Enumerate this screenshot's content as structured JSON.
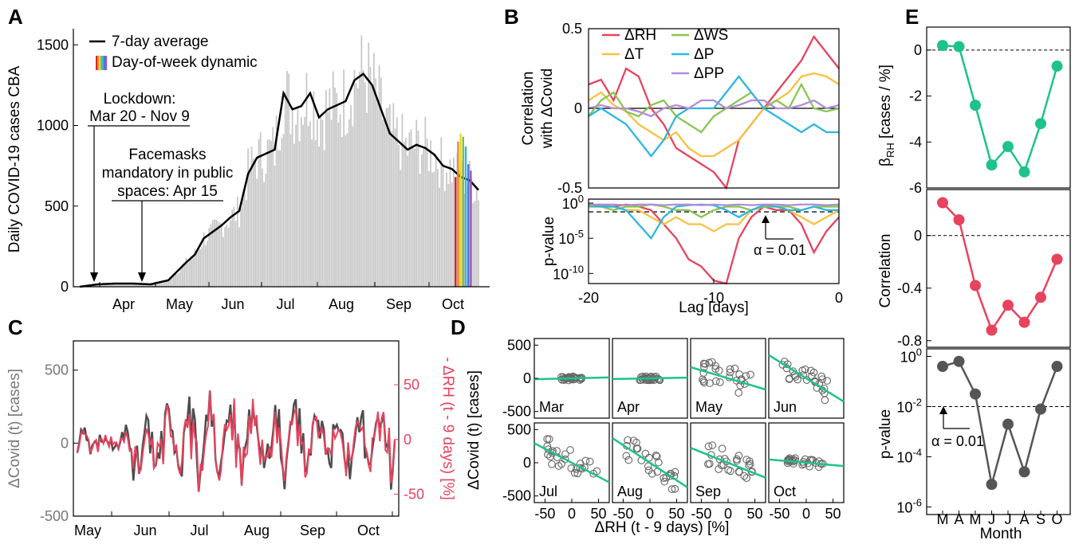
{
  "panel_labels": [
    "A",
    "B",
    "C",
    "D",
    "E"
  ],
  "chart_data": [
    {
      "type": "bar",
      "panel": "A",
      "ylabel": "Daily COVID-19 cases CBA",
      "ylim": [
        0,
        1600
      ],
      "yticks": [
        "0",
        "500",
        "1000",
        "1500"
      ],
      "xticks": [
        "Apr",
        "May",
        "Jun",
        "Jul",
        "Aug",
        "Sep",
        "Oct"
      ],
      "legend": [
        "7-day average",
        "Day-of-week dynamic"
      ],
      "annotations": [
        "Lockdown:",
        "Mar 20 - Nov 9",
        "Facemasks",
        "mandatory in public",
        "spaces: Apr 15"
      ],
      "avg_x": [
        0,
        10,
        20,
        30,
        40,
        50,
        60,
        65,
        70,
        80,
        85,
        90,
        95,
        100,
        110,
        115,
        120,
        125,
        130,
        135,
        140,
        150,
        155,
        160,
        165,
        170,
        175,
        180,
        185,
        190,
        195,
        200,
        205,
        210,
        215,
        220,
        225
      ],
      "avg_y": [
        0,
        15,
        20,
        20,
        15,
        40,
        150,
        200,
        300,
        380,
        430,
        470,
        700,
        800,
        850,
        1200,
        1100,
        1120,
        1200,
        1050,
        1100,
        1150,
        1280,
        1320,
        1250,
        1100,
        950,
        900,
        850,
        880,
        860,
        820,
        750,
        730,
        680,
        660,
        600
      ]
    },
    {
      "type": "line",
      "panel": "B",
      "ylabel": "Correlation with ΔCovid",
      "ylabel_lines": [
        "Correlation",
        "with ΔCovid"
      ],
      "xlabel": "Lag [days]",
      "xlim": [
        -20,
        0
      ],
      "ylim": [
        -0.5,
        0.5
      ],
      "yticks": [
        "-0.5",
        "0",
        "0.5"
      ],
      "xticks": [
        "-20",
        "-10",
        "0"
      ],
      "x": [
        -20,
        -19,
        -18,
        -17,
        -16,
        -15,
        -14,
        -13,
        -12,
        -11,
        -10,
        -9,
        -8,
        -7,
        -6,
        -5,
        -4,
        -3,
        -2,
        -1,
        0
      ],
      "series": [
        {
          "name": "ΔRH",
          "color": "#e8435e",
          "values": [
            0.15,
            0.18,
            0.05,
            0.25,
            0.2,
            0.0,
            -0.1,
            -0.25,
            -0.3,
            -0.35,
            -0.4,
            -0.5,
            -0.2,
            -0.1,
            0.0,
            0.1,
            0.2,
            0.3,
            0.45,
            0.35,
            0.25
          ]
        },
        {
          "name": "ΔT",
          "color": "#f5c242",
          "values": [
            0.05,
            0.1,
            0.02,
            -0.02,
            -0.1,
            -0.15,
            -0.2,
            -0.15,
            -0.25,
            -0.3,
            -0.3,
            -0.25,
            -0.2,
            -0.1,
            0.0,
            0.05,
            0.1,
            0.2,
            0.22,
            0.2,
            0.15
          ]
        },
        {
          "name": "ΔWS",
          "color": "#8ac652",
          "values": [
            -0.05,
            0.05,
            0.1,
            -0.02,
            -0.05,
            0.02,
            0.05,
            -0.05,
            -0.1,
            -0.15,
            -0.05,
            0.0,
            0.05,
            0.1,
            0.0,
            0.05,
            0.0,
            0.15,
            0.0,
            -0.02,
            0.0
          ]
        },
        {
          "name": "ΔP",
          "color": "#2eb7e0",
          "values": [
            -0.05,
            0.0,
            -0.05,
            -0.1,
            -0.2,
            -0.3,
            -0.2,
            -0.05,
            0.0,
            0.0,
            0.0,
            0.1,
            0.2,
            0.1,
            0.0,
            -0.05,
            -0.1,
            -0.15,
            -0.1,
            -0.15,
            -0.15
          ]
        },
        {
          "name": "ΔPP",
          "color": "#b28cd9",
          "values": [
            0.0,
            0.02,
            0.0,
            0.0,
            -0.02,
            -0.05,
            0.0,
            0.02,
            0.0,
            0.05,
            0.05,
            0.0,
            0.02,
            0.05,
            0.05,
            0.0,
            0.0,
            0.02,
            0.05,
            0.0,
            0.02
          ]
        }
      ]
    },
    {
      "type": "line",
      "panel": "B-p",
      "ylabel": "p-value",
      "ylim_log": [
        -12,
        0
      ],
      "yticks": [
        "10^0",
        "10^-5",
        "10^-10"
      ],
      "annotation": "α = 0.01",
      "series": [
        {
          "name": "ΔRH",
          "color": "#e8435e",
          "values": [
            -0.5,
            -0.3,
            -0.5,
            -0.2,
            -0.5,
            -1,
            -3,
            -5,
            -8,
            -9,
            -11,
            -12,
            -5,
            -2,
            -0.5,
            -1,
            -1,
            -3,
            -7,
            -4,
            -2
          ]
        },
        {
          "name": "ΔT",
          "color": "#f5c242",
          "values": [
            -0.5,
            -0.5,
            -0.5,
            -1,
            -1,
            -2,
            -3,
            -2,
            -3,
            -3,
            -4,
            -3,
            -3,
            -1,
            -0.5,
            -0.5,
            -1,
            -2,
            -3,
            -2,
            -1
          ]
        },
        {
          "name": "ΔWS",
          "color": "#8ac652",
          "values": [
            -0.5,
            -0.5,
            -1,
            -0.5,
            -0.5,
            -0.2,
            -0.5,
            -1,
            -1,
            -2,
            -1,
            -0.5,
            -0.5,
            -1,
            -0.5,
            -0.5,
            -0.5,
            -1,
            -0.5,
            -0.5,
            -0.5
          ]
        },
        {
          "name": "ΔP",
          "color": "#2eb7e0",
          "values": [
            -0.3,
            -0.5,
            -0.5,
            -1,
            -3,
            -5,
            -2,
            -0.5,
            -0.3,
            -0.2,
            -0.3,
            -1,
            -2,
            -1,
            -0.3,
            -0.5,
            -1,
            -1,
            -0.5,
            -1,
            -1
          ]
        },
        {
          "name": "ΔPP",
          "color": "#b28cd9",
          "values": [
            -0.2,
            -0.2,
            -0.2,
            -0.3,
            -0.2,
            -0.2,
            -0.3,
            -0.2,
            -0.2,
            -0.3,
            -0.2,
            -0.3,
            -0.2,
            -0.3,
            -0.2,
            -0.2,
            -0.3,
            -0.2,
            -0.2,
            -0.3,
            -0.2
          ]
        }
      ]
    },
    {
      "type": "line",
      "panel": "C",
      "ylabel": "ΔCovid (t) [cases]",
      "ylabel_right": "- ΔRH (t - 9 days) [%]",
      "ylim": [
        -500,
        700
      ],
      "ylim_right": [
        -70,
        90
      ],
      "yticks": [
        "-500",
        "0",
        "500"
      ],
      "yticks_right": [
        "-50",
        "0",
        "50"
      ],
      "xticks": [
        "May",
        "Jun",
        "Jul",
        "Aug",
        "Sep",
        "Oct"
      ]
    },
    {
      "type": "scatter",
      "panel": "D",
      "xlabel": "ΔRH (t - 9 days) [%]",
      "ylabel": "ΔCovid (t)  [cases]",
      "xticks": [
        "-50",
        "0",
        "50"
      ],
      "yticks": [
        "500",
        "0",
        "-500"
      ],
      "months": [
        "Mar",
        "Apr",
        "May",
        "Jun",
        "Jul",
        "Aug",
        "Sep",
        "Oct"
      ],
      "slopes": [
        0.2,
        0.15,
        -2.4,
        -5.0,
        -4.2,
        -5.3,
        -3.2,
        -0.7
      ]
    },
    {
      "type": "line",
      "panel": "E1",
      "ylabel": "β_RH [cases / %]",
      "ylabel_main": "β",
      "ylabel_sub": "RH",
      "ylabel_rest": " [cases / %]",
      "ylim": [
        -6,
        1
      ],
      "yticks": [
        "0",
        "-2",
        "-4",
        "-6"
      ],
      "color": "#1ec389",
      "values": [
        0.2,
        0.15,
        -2.4,
        -5.0,
        -4.2,
        -5.3,
        -3.2,
        -0.7
      ]
    },
    {
      "type": "line",
      "panel": "E2",
      "ylabel": "Correlation",
      "ylim": [
        -0.85,
        0.35
      ],
      "yticks": [
        "0",
        "-0.4",
        "-0.8"
      ],
      "color": "#e8435e",
      "values": [
        0.25,
        0.12,
        -0.38,
        -0.72,
        -0.53,
        -0.66,
        -0.47,
        -0.18
      ]
    },
    {
      "type": "line",
      "panel": "E3",
      "ylabel": "p-value",
      "xlabel": "Month",
      "yticks": [
        "10^0",
        "10^-2",
        "10^-4",
        "10^-6"
      ],
      "annotation": "α = 0.01",
      "color": "#555555",
      "categories": [
        "M",
        "A",
        "M",
        "J",
        "J",
        "A",
        "S",
        "O"
      ],
      "values_log": [
        -0.4,
        -0.2,
        -1.5,
        -5.1,
        -2.7,
        -4.6,
        -2.1,
        -0.4
      ]
    }
  ]
}
